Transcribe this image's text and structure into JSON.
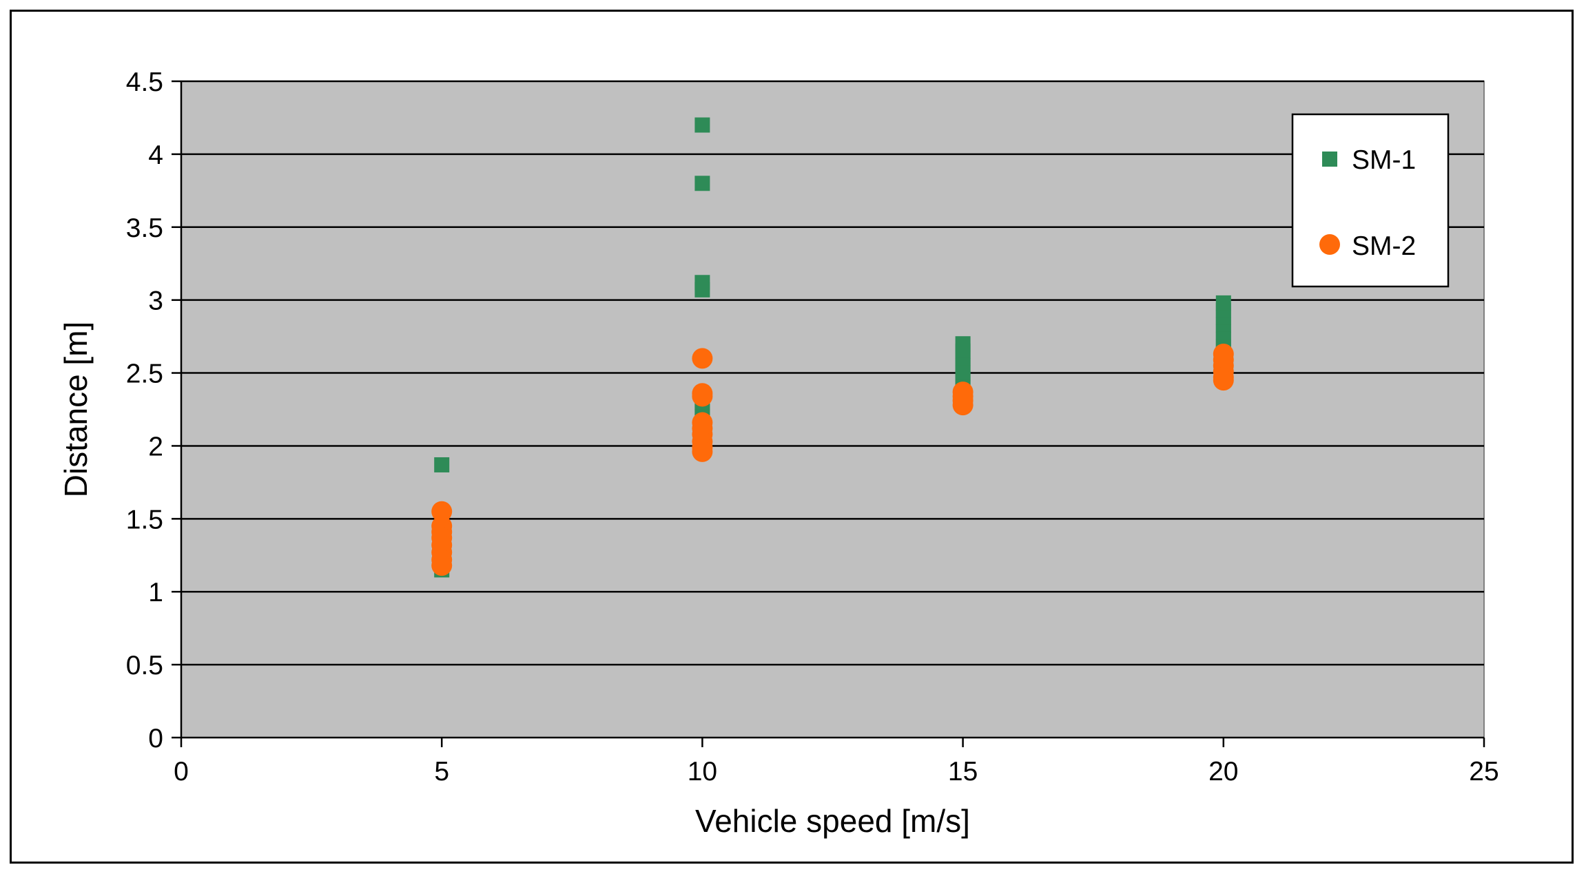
{
  "chart_data": {
    "type": "scatter",
    "xlabel": "Vehicle speed [m/s]",
    "ylabel": "Distance [m]",
    "xlim": [
      0,
      25
    ],
    "ylim": [
      0,
      4.5
    ],
    "xticks": [
      0,
      5,
      10,
      15,
      20,
      25
    ],
    "yticks": [
      0,
      0.5,
      1,
      1.5,
      2,
      2.5,
      3,
      3.5,
      4,
      4.5
    ],
    "x_tick_labels": [
      "0",
      "5",
      "10",
      "15",
      "20",
      "25"
    ],
    "y_tick_labels": [
      "0",
      "0.5",
      "1",
      "1.5",
      "2",
      "2.5",
      "3",
      "3.5",
      "4",
      "4.5"
    ],
    "grid": "horizontal",
    "legend_position": "top-right",
    "plot_background": "#c0c0c0",
    "series": [
      {
        "name": "SM-1",
        "marker": "square",
        "color": "#2e8b57",
        "points": [
          [
            5,
            1.87
          ],
          [
            5,
            1.15
          ],
          [
            5,
            1.2
          ],
          [
            5,
            1.25
          ],
          [
            10,
            4.2
          ],
          [
            10,
            3.8
          ],
          [
            10,
            3.12
          ],
          [
            10,
            3.07
          ],
          [
            10,
            2.3
          ],
          [
            10,
            2.25
          ],
          [
            10,
            2.2
          ],
          [
            15,
            2.7
          ],
          [
            15,
            2.65
          ],
          [
            15,
            2.6
          ],
          [
            15,
            2.55
          ],
          [
            15,
            2.5
          ],
          [
            15,
            2.45
          ],
          [
            15,
            2.4
          ],
          [
            20,
            2.98
          ],
          [
            20,
            2.93
          ],
          [
            20,
            2.88
          ],
          [
            20,
            2.83
          ],
          [
            20,
            2.78
          ],
          [
            20,
            2.73
          ],
          [
            20,
            2.68
          ],
          [
            20,
            2.63
          ]
        ]
      },
      {
        "name": "SM-2",
        "marker": "circle",
        "color": "#ff6a0a",
        "points": [
          [
            5,
            1.55
          ],
          [
            5,
            1.45
          ],
          [
            5,
            1.41
          ],
          [
            5,
            1.37
          ],
          [
            5,
            1.32
          ],
          [
            5,
            1.27
          ],
          [
            5,
            1.22
          ],
          [
            5,
            1.18
          ],
          [
            10,
            2.6
          ],
          [
            10,
            2.36
          ],
          [
            10,
            2.34
          ],
          [
            10,
            2.16
          ],
          [
            10,
            2.12
          ],
          [
            10,
            2.08
          ],
          [
            10,
            2.03
          ],
          [
            10,
            1.99
          ],
          [
            10,
            1.96
          ],
          [
            15,
            2.37
          ],
          [
            15,
            2.34
          ],
          [
            15,
            2.31
          ],
          [
            15,
            2.28
          ],
          [
            20,
            2.63
          ],
          [
            20,
            2.59
          ],
          [
            20,
            2.55
          ],
          [
            20,
            2.51
          ],
          [
            20,
            2.47
          ],
          [
            20,
            2.45
          ]
        ]
      }
    ]
  }
}
